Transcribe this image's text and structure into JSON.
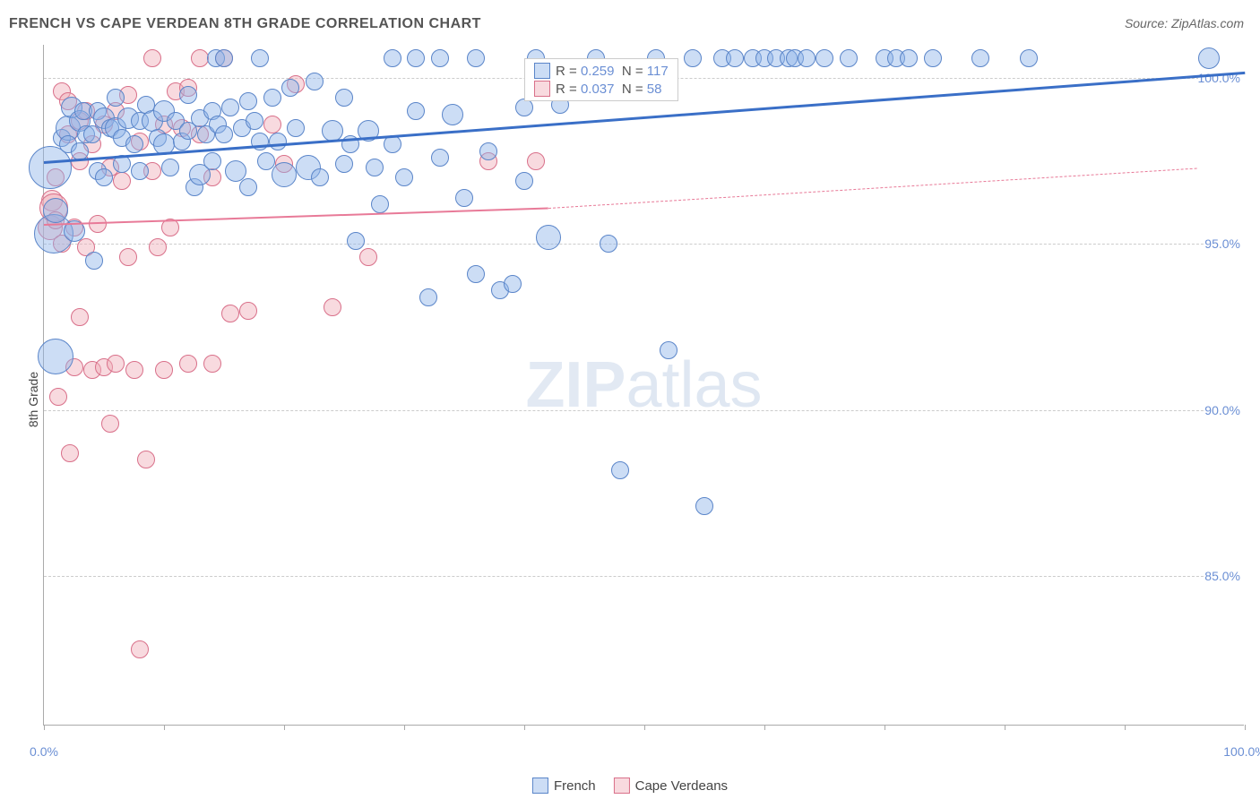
{
  "title": "FRENCH VS CAPE VERDEAN 8TH GRADE CORRELATION CHART",
  "source": "Source: ZipAtlas.com",
  "y_axis_label": "8th Grade",
  "watermark": {
    "bold": "ZIP",
    "rest": "atlas"
  },
  "series_a": {
    "name": "French",
    "color": "#8fb3e8",
    "fill": "rgba(143,179,232,0.45)",
    "stroke": "#5a85c9",
    "R_label": "R =",
    "R": "0.259",
    "N_label": "N =",
    "N": "117",
    "trend": {
      "x1": 0,
      "y1": 97.5,
      "x2": 100,
      "y2": 100.2,
      "color": "#3a6fc7",
      "width": 3
    }
  },
  "series_b": {
    "name": "Cape Verdeans",
    "color": "#f0aeb9",
    "fill": "rgba(240,174,185,0.45)",
    "stroke": "#d9708a",
    "R_label": "R =",
    "R": "0.037",
    "N_label": "N =",
    "N": "58",
    "trend_solid": {
      "x1": 0,
      "y1": 95.6,
      "x2": 42,
      "y2": 96.1,
      "color": "#e87a98",
      "width": 2
    },
    "trend_dashed": {
      "x1": 42,
      "y1": 96.1,
      "x2": 96,
      "y2": 97.3,
      "color": "#e87a98",
      "width": 1
    }
  },
  "xlim": [
    0,
    100
  ],
  "ylim": [
    80.5,
    101
  ],
  "y_ticks": [
    {
      "v": 100,
      "label": "100.0%"
    },
    {
      "v": 95,
      "label": "95.0%"
    },
    {
      "v": 90,
      "label": "90.0%"
    },
    {
      "v": 85,
      "label": "85.0%"
    }
  ],
  "x_ticks": [
    0,
    10,
    20,
    30,
    40,
    50,
    60,
    70,
    80,
    90,
    100
  ],
  "x_tick_labels": [
    {
      "v": 0,
      "label": "0.0%"
    },
    {
      "v": 100,
      "label": "100.0%"
    }
  ],
  "legend_top_pos": {
    "left_pct": 40,
    "top_pct": 2
  },
  "points_a": [
    {
      "x": 0.5,
      "y": 97.3,
      "r": 24
    },
    {
      "x": 0.8,
      "y": 95.3,
      "r": 22
    },
    {
      "x": 1,
      "y": 96.0,
      "r": 14
    },
    {
      "x": 1,
      "y": 91.6,
      "r": 20
    },
    {
      "x": 1.5,
      "y": 98.2,
      "r": 10
    },
    {
      "x": 2,
      "y": 98.5,
      "r": 14
    },
    {
      "x": 2,
      "y": 98.0,
      "r": 10
    },
    {
      "x": 2.3,
      "y": 99.1,
      "r": 12
    },
    {
      "x": 2.5,
      "y": 95.4,
      "r": 12
    },
    {
      "x": 3,
      "y": 98.7,
      "r": 12
    },
    {
      "x": 3,
      "y": 97.8,
      "r": 10
    },
    {
      "x": 3.3,
      "y": 99.0,
      "r": 10
    },
    {
      "x": 3.5,
      "y": 98.3,
      "r": 10
    },
    {
      "x": 4,
      "y": 98.3,
      "r": 10
    },
    {
      "x": 4.2,
      "y": 94.5,
      "r": 10
    },
    {
      "x": 4.5,
      "y": 99.0,
      "r": 10
    },
    {
      "x": 4.5,
      "y": 97.2,
      "r": 10
    },
    {
      "x": 5,
      "y": 98.8,
      "r": 12
    },
    {
      "x": 5,
      "y": 97.0,
      "r": 10
    },
    {
      "x": 5.5,
      "y": 98.5,
      "r": 10
    },
    {
      "x": 6,
      "y": 99.4,
      "r": 10
    },
    {
      "x": 6,
      "y": 98.5,
      "r": 12
    },
    {
      "x": 6.5,
      "y": 98.2,
      "r": 10
    },
    {
      "x": 6.5,
      "y": 97.4,
      "r": 10
    },
    {
      "x": 7,
      "y": 98.8,
      "r": 12
    },
    {
      "x": 7.5,
      "y": 98.0,
      "r": 10
    },
    {
      "x": 8,
      "y": 98.7,
      "r": 10
    },
    {
      "x": 8,
      "y": 97.2,
      "r": 10
    },
    {
      "x": 8.5,
      "y": 99.2,
      "r": 10
    },
    {
      "x": 9,
      "y": 98.7,
      "r": 12
    },
    {
      "x": 9.5,
      "y": 98.2,
      "r": 10
    },
    {
      "x": 10,
      "y": 99.0,
      "r": 12
    },
    {
      "x": 10,
      "y": 98.0,
      "r": 12
    },
    {
      "x": 10.5,
      "y": 97.3,
      "r": 10
    },
    {
      "x": 11,
      "y": 98.7,
      "r": 10
    },
    {
      "x": 11.5,
      "y": 98.1,
      "r": 10
    },
    {
      "x": 12,
      "y": 99.5,
      "r": 10
    },
    {
      "x": 12,
      "y": 98.4,
      "r": 10
    },
    {
      "x": 12.5,
      "y": 96.7,
      "r": 10
    },
    {
      "x": 13,
      "y": 98.8,
      "r": 10
    },
    {
      "x": 13,
      "y": 97.1,
      "r": 12
    },
    {
      "x": 13.5,
      "y": 98.3,
      "r": 10
    },
    {
      "x": 14,
      "y": 99.0,
      "r": 10
    },
    {
      "x": 14,
      "y": 97.5,
      "r": 10
    },
    {
      "x": 14.3,
      "y": 100.6,
      "r": 10
    },
    {
      "x": 14.5,
      "y": 98.6,
      "r": 10
    },
    {
      "x": 15,
      "y": 100.6,
      "r": 10
    },
    {
      "x": 15,
      "y": 98.3,
      "r": 10
    },
    {
      "x": 15.5,
      "y": 99.1,
      "r": 10
    },
    {
      "x": 16,
      "y": 97.2,
      "r": 12
    },
    {
      "x": 16.5,
      "y": 98.5,
      "r": 10
    },
    {
      "x": 17,
      "y": 99.3,
      "r": 10
    },
    {
      "x": 17,
      "y": 96.7,
      "r": 10
    },
    {
      "x": 17.5,
      "y": 98.7,
      "r": 10
    },
    {
      "x": 18,
      "y": 100.6,
      "r": 10
    },
    {
      "x": 18,
      "y": 98.1,
      "r": 10
    },
    {
      "x": 18.5,
      "y": 97.5,
      "r": 10
    },
    {
      "x": 19,
      "y": 99.4,
      "r": 10
    },
    {
      "x": 19.5,
      "y": 98.1,
      "r": 10
    },
    {
      "x": 20,
      "y": 97.1,
      "r": 14
    },
    {
      "x": 20.5,
      "y": 99.7,
      "r": 10
    },
    {
      "x": 21,
      "y": 98.5,
      "r": 10
    },
    {
      "x": 22,
      "y": 97.3,
      "r": 14
    },
    {
      "x": 22.5,
      "y": 99.9,
      "r": 10
    },
    {
      "x": 23,
      "y": 97.0,
      "r": 10
    },
    {
      "x": 24,
      "y": 98.4,
      "r": 12
    },
    {
      "x": 25,
      "y": 99.4,
      "r": 10
    },
    {
      "x": 25,
      "y": 97.4,
      "r": 10
    },
    {
      "x": 25.5,
      "y": 98.0,
      "r": 10
    },
    {
      "x": 26,
      "y": 95.1,
      "r": 10
    },
    {
      "x": 27,
      "y": 98.4,
      "r": 12
    },
    {
      "x": 27.5,
      "y": 97.3,
      "r": 10
    },
    {
      "x": 28,
      "y": 96.2,
      "r": 10
    },
    {
      "x": 29,
      "y": 100.6,
      "r": 10
    },
    {
      "x": 29,
      "y": 98.0,
      "r": 10
    },
    {
      "x": 30,
      "y": 97.0,
      "r": 10
    },
    {
      "x": 31,
      "y": 100.6,
      "r": 10
    },
    {
      "x": 31,
      "y": 99.0,
      "r": 10
    },
    {
      "x": 32,
      "y": 93.4,
      "r": 10
    },
    {
      "x": 33,
      "y": 97.6,
      "r": 10
    },
    {
      "x": 33,
      "y": 100.6,
      "r": 10
    },
    {
      "x": 34,
      "y": 98.9,
      "r": 12
    },
    {
      "x": 35,
      "y": 96.4,
      "r": 10
    },
    {
      "x": 36,
      "y": 100.6,
      "r": 10
    },
    {
      "x": 36,
      "y": 94.1,
      "r": 10
    },
    {
      "x": 37,
      "y": 97.8,
      "r": 10
    },
    {
      "x": 38,
      "y": 93.6,
      "r": 10
    },
    {
      "x": 39,
      "y": 93.8,
      "r": 10
    },
    {
      "x": 40,
      "y": 99.1,
      "r": 10
    },
    {
      "x": 40,
      "y": 96.9,
      "r": 10
    },
    {
      "x": 41,
      "y": 100.6,
      "r": 10
    },
    {
      "x": 42,
      "y": 95.2,
      "r": 14
    },
    {
      "x": 43,
      "y": 99.2,
      "r": 10
    },
    {
      "x": 46,
      "y": 100.6,
      "r": 10
    },
    {
      "x": 47,
      "y": 95.0,
      "r": 10
    },
    {
      "x": 48,
      "y": 88.2,
      "r": 10
    },
    {
      "x": 51,
      "y": 100.6,
      "r": 10
    },
    {
      "x": 52,
      "y": 91.8,
      "r": 10
    },
    {
      "x": 54,
      "y": 100.6,
      "r": 10
    },
    {
      "x": 55,
      "y": 87.1,
      "r": 10
    },
    {
      "x": 56.5,
      "y": 100.6,
      "r": 10
    },
    {
      "x": 57.5,
      "y": 100.6,
      "r": 10
    },
    {
      "x": 59,
      "y": 100.6,
      "r": 10
    },
    {
      "x": 60,
      "y": 100.6,
      "r": 10
    },
    {
      "x": 61,
      "y": 100.6,
      "r": 10
    },
    {
      "x": 62,
      "y": 100.6,
      "r": 10
    },
    {
      "x": 62.5,
      "y": 100.6,
      "r": 10
    },
    {
      "x": 63.5,
      "y": 100.6,
      "r": 10
    },
    {
      "x": 65,
      "y": 100.6,
      "r": 10
    },
    {
      "x": 67,
      "y": 100.6,
      "r": 10
    },
    {
      "x": 70,
      "y": 100.6,
      "r": 10
    },
    {
      "x": 71,
      "y": 100.6,
      "r": 10
    },
    {
      "x": 72,
      "y": 100.6,
      "r": 10
    },
    {
      "x": 74,
      "y": 100.6,
      "r": 10
    },
    {
      "x": 78,
      "y": 100.6,
      "r": 10
    },
    {
      "x": 82,
      "y": 100.6,
      "r": 10
    },
    {
      "x": 97,
      "y": 100.6,
      "r": 12
    }
  ],
  "points_b": [
    {
      "x": 0.5,
      "y": 95.5,
      "r": 14
    },
    {
      "x": 0.7,
      "y": 96.3,
      "r": 12
    },
    {
      "x": 0.8,
      "y": 96.1,
      "r": 16
    },
    {
      "x": 1,
      "y": 95.7,
      "r": 10
    },
    {
      "x": 1,
      "y": 97.0,
      "r": 10
    },
    {
      "x": 1.2,
      "y": 90.4,
      "r": 10
    },
    {
      "x": 1.5,
      "y": 99.6,
      "r": 10
    },
    {
      "x": 1.5,
      "y": 95.0,
      "r": 10
    },
    {
      "x": 2,
      "y": 98.3,
      "r": 10
    },
    {
      "x": 2,
      "y": 99.3,
      "r": 10
    },
    {
      "x": 2.2,
      "y": 88.7,
      "r": 10
    },
    {
      "x": 2.5,
      "y": 95.5,
      "r": 10
    },
    {
      "x": 2.5,
      "y": 91.3,
      "r": 10
    },
    {
      "x": 3,
      "y": 97.5,
      "r": 10
    },
    {
      "x": 3,
      "y": 98.7,
      "r": 10
    },
    {
      "x": 3,
      "y": 92.8,
      "r": 10
    },
    {
      "x": 3.5,
      "y": 94.9,
      "r": 10
    },
    {
      "x": 3.5,
      "y": 99.0,
      "r": 10
    },
    {
      "x": 4,
      "y": 98.0,
      "r": 10
    },
    {
      "x": 4,
      "y": 91.2,
      "r": 10
    },
    {
      "x": 4.5,
      "y": 95.6,
      "r": 10
    },
    {
      "x": 5,
      "y": 98.6,
      "r": 10
    },
    {
      "x": 5,
      "y": 91.3,
      "r": 10
    },
    {
      "x": 5.5,
      "y": 97.3,
      "r": 10
    },
    {
      "x": 5.5,
      "y": 89.6,
      "r": 10
    },
    {
      "x": 6,
      "y": 99.0,
      "r": 10
    },
    {
      "x": 6,
      "y": 91.4,
      "r": 10
    },
    {
      "x": 6.5,
      "y": 96.9,
      "r": 10
    },
    {
      "x": 7,
      "y": 99.5,
      "r": 10
    },
    {
      "x": 7,
      "y": 94.6,
      "r": 10
    },
    {
      "x": 7.5,
      "y": 91.2,
      "r": 10
    },
    {
      "x": 8,
      "y": 98.1,
      "r": 10
    },
    {
      "x": 8,
      "y": 82.8,
      "r": 10
    },
    {
      "x": 8.5,
      "y": 88.5,
      "r": 10
    },
    {
      "x": 9,
      "y": 100.6,
      "r": 10
    },
    {
      "x": 9,
      "y": 97.2,
      "r": 10
    },
    {
      "x": 9.5,
      "y": 94.9,
      "r": 10
    },
    {
      "x": 10,
      "y": 98.6,
      "r": 10
    },
    {
      "x": 10,
      "y": 91.2,
      "r": 10
    },
    {
      "x": 10.5,
      "y": 95.5,
      "r": 10
    },
    {
      "x": 11,
      "y": 99.6,
      "r": 10
    },
    {
      "x": 11.5,
      "y": 98.5,
      "r": 10
    },
    {
      "x": 12,
      "y": 99.7,
      "r": 10
    },
    {
      "x": 12,
      "y": 91.4,
      "r": 10
    },
    {
      "x": 13,
      "y": 98.3,
      "r": 10
    },
    {
      "x": 13,
      "y": 100.6,
      "r": 10
    },
    {
      "x": 14,
      "y": 97.0,
      "r": 10
    },
    {
      "x": 14,
      "y": 91.4,
      "r": 10
    },
    {
      "x": 15,
      "y": 100.6,
      "r": 10
    },
    {
      "x": 15.5,
      "y": 92.9,
      "r": 10
    },
    {
      "x": 17,
      "y": 93.0,
      "r": 10
    },
    {
      "x": 19,
      "y": 98.6,
      "r": 10
    },
    {
      "x": 20,
      "y": 97.4,
      "r": 10
    },
    {
      "x": 21,
      "y": 99.8,
      "r": 10
    },
    {
      "x": 24,
      "y": 93.1,
      "r": 10
    },
    {
      "x": 27,
      "y": 94.6,
      "r": 10
    },
    {
      "x": 37,
      "y": 97.5,
      "r": 10
    },
    {
      "x": 41,
      "y": 97.5,
      "r": 10
    }
  ]
}
